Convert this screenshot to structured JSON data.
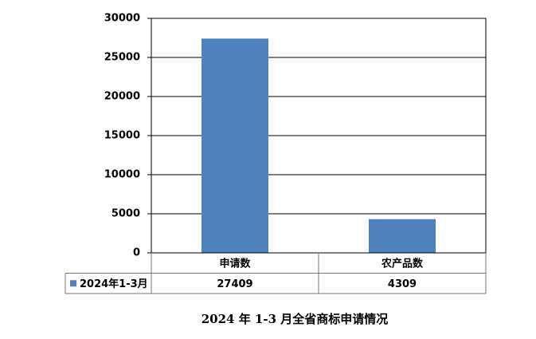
{
  "chart_data": {
    "type": "bar",
    "title": "2024 年 1-3 月全省商标申请情况",
    "categories": [
      "申请数",
      "农产品数"
    ],
    "series": [
      {
        "name": "2024年1-3月",
        "color": "#4f81bd",
        "values": [
          27409,
          4309
        ]
      }
    ],
    "ylim": [
      0,
      30000
    ],
    "yticks": [
      0,
      5000,
      10000,
      15000,
      20000,
      25000,
      30000
    ],
    "grid": true,
    "legend": "bottom-left"
  }
}
